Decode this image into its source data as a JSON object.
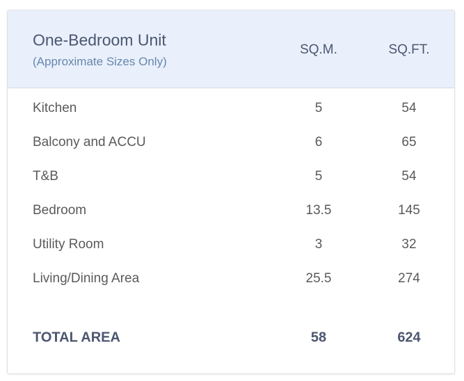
{
  "header": {
    "title": "One-Bedroom Unit",
    "subtitle": "(Approximate Sizes Only)",
    "columns": [
      "SQ.M.",
      "SQ.FT."
    ]
  },
  "table": {
    "rows": [
      [
        "Kitchen",
        5,
        54
      ],
      [
        "Balcony and ACCU",
        6,
        65
      ],
      [
        "T&B",
        5,
        54
      ],
      [
        "Bedroom",
        13.5,
        145
      ],
      [
        "Utility Room",
        3,
        32
      ],
      [
        "Living/Dining Area",
        25.5,
        274
      ]
    ],
    "total": [
      "TOTAL AREA",
      58,
      624
    ]
  }
}
